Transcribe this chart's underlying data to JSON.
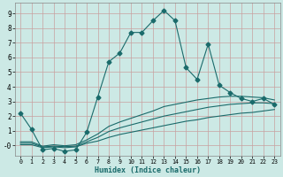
{
  "xlabel": "Humidex (Indice chaleur)",
  "bg_color": "#cce9e5",
  "line_color": "#1a6b6b",
  "grid_color": "#c8a0a0",
  "xlim": [
    -0.5,
    23.5
  ],
  "ylim": [
    -0.7,
    9.7
  ],
  "xticks": [
    0,
    1,
    2,
    3,
    4,
    5,
    6,
    7,
    8,
    9,
    10,
    11,
    12,
    13,
    14,
    15,
    16,
    17,
    18,
    19,
    20,
    21,
    22,
    23
  ],
  "yticks": [
    0,
    1,
    2,
    3,
    4,
    5,
    6,
    7,
    8,
    9
  ],
  "ytick_labels": [
    "-0",
    "1",
    "2",
    "3",
    "4",
    "5",
    "6",
    "7",
    "8",
    "9"
  ],
  "main_x": [
    0,
    1,
    2,
    3,
    4,
    5,
    6,
    7,
    8,
    9,
    10,
    11,
    12,
    13,
    14,
    15,
    16,
    17,
    18,
    19,
    20,
    21,
    22,
    23
  ],
  "main_y": [
    2.2,
    1.1,
    -0.3,
    -0.2,
    -0.4,
    -0.3,
    0.9,
    3.3,
    5.7,
    6.3,
    7.7,
    7.7,
    8.5,
    9.2,
    8.5,
    5.3,
    4.5,
    6.9,
    4.1,
    3.6,
    3.2,
    3.0,
    3.2,
    2.8
  ],
  "line2_x": [
    0,
    1,
    2,
    3,
    4,
    5,
    6,
    7,
    8,
    9,
    10,
    11,
    12,
    13,
    14,
    15,
    16,
    17,
    18,
    19,
    20,
    21,
    22,
    23
  ],
  "line2_y": [
    0.05,
    0.05,
    -0.15,
    -0.1,
    -0.15,
    -0.1,
    0.15,
    0.3,
    0.55,
    0.75,
    0.9,
    1.05,
    1.2,
    1.35,
    1.5,
    1.65,
    1.75,
    1.9,
    2.0,
    2.1,
    2.2,
    2.25,
    2.35,
    2.45
  ],
  "line3_x": [
    0,
    1,
    2,
    3,
    4,
    5,
    6,
    7,
    8,
    9,
    10,
    11,
    12,
    13,
    14,
    15,
    16,
    17,
    18,
    19,
    20,
    21,
    22,
    23
  ],
  "line3_y": [
    0.15,
    0.15,
    -0.1,
    -0.05,
    -0.08,
    -0.05,
    0.25,
    0.55,
    0.95,
    1.2,
    1.4,
    1.6,
    1.8,
    2.0,
    2.15,
    2.3,
    2.45,
    2.6,
    2.7,
    2.8,
    2.85,
    2.9,
    2.9,
    2.85
  ],
  "line4_x": [
    0,
    1,
    2,
    3,
    4,
    5,
    6,
    7,
    8,
    9,
    10,
    11,
    12,
    13,
    14,
    15,
    16,
    17,
    18,
    19,
    20,
    21,
    22,
    23
  ],
  "line4_y": [
    0.25,
    0.25,
    -0.05,
    0.05,
    -0.02,
    0.05,
    0.38,
    0.78,
    1.3,
    1.6,
    1.85,
    2.1,
    2.35,
    2.65,
    2.8,
    2.95,
    3.1,
    3.2,
    3.3,
    3.35,
    3.35,
    3.3,
    3.25,
    3.1
  ]
}
